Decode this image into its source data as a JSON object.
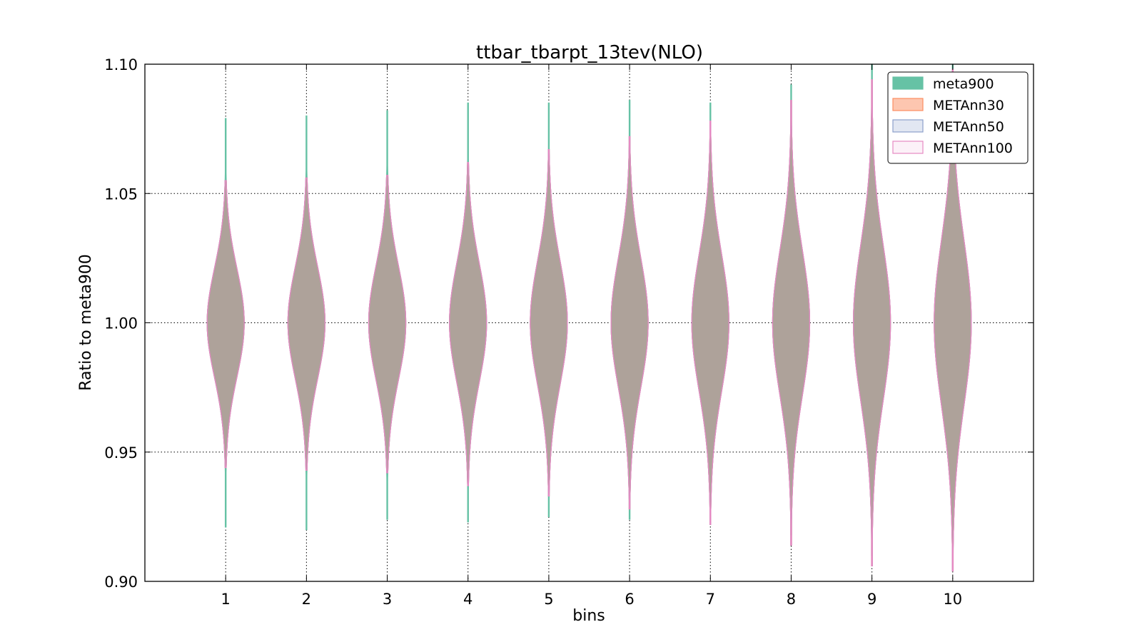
{
  "chart_data": {
    "type": "violin",
    "title": "ttbar_tbarpt_13tev(NLO)",
    "xlabel": "bins",
    "ylabel": "Ratio to meta900",
    "ylim": [
      0.9,
      1.1
    ],
    "xlim": [
      0,
      11
    ],
    "yticks": [
      "0.90",
      "0.95",
      "1.00",
      "1.05",
      "1.10"
    ],
    "categories": [
      "1",
      "2",
      "3",
      "4",
      "5",
      "6",
      "7",
      "8",
      "9",
      "10"
    ],
    "grid": true,
    "legend_position": "top-right",
    "series": [
      {
        "name": "meta900",
        "fill": "#66c2a5",
        "edge": "#66c2a5",
        "fill_opacity": 1.0,
        "min": [
          0.921,
          0.92,
          0.924,
          0.923,
          0.925,
          0.924,
          0.922,
          0.918,
          0.91,
          0.905
        ],
        "max": [
          1.079,
          1.08,
          1.082,
          1.085,
          1.085,
          1.086,
          1.085,
          1.092,
          1.1,
          1.1
        ],
        "sigma": [
          0.021,
          0.0215,
          0.022,
          0.023,
          0.024,
          0.025,
          0.0265,
          0.028,
          0.03,
          0.032
        ]
      },
      {
        "name": "METAnn30",
        "fill": "#fc8d62",
        "edge": "#fc8d62",
        "fill_opacity": 0.5,
        "min": [
          0.944,
          0.943,
          0.942,
          0.937,
          0.933,
          0.928,
          0.922,
          0.914,
          0.906,
          0.904
        ],
        "max": [
          1.055,
          1.056,
          1.057,
          1.062,
          1.067,
          1.072,
          1.078,
          1.086,
          1.094,
          1.098
        ],
        "sigma": [
          0.021,
          0.0215,
          0.022,
          0.023,
          0.024,
          0.025,
          0.0265,
          0.028,
          0.03,
          0.032
        ]
      },
      {
        "name": "METAnn50",
        "fill": "#8da0cb",
        "edge": "#8da0cb",
        "fill_opacity": 0.25,
        "min": [
          0.944,
          0.943,
          0.942,
          0.937,
          0.933,
          0.928,
          0.922,
          0.914,
          0.906,
          0.904
        ],
        "max": [
          1.055,
          1.056,
          1.057,
          1.062,
          1.067,
          1.072,
          1.078,
          1.086,
          1.094,
          1.098
        ],
        "sigma": [
          0.021,
          0.0215,
          0.022,
          0.023,
          0.024,
          0.025,
          0.0265,
          0.028,
          0.03,
          0.032
        ]
      },
      {
        "name": "METAnn100",
        "fill": "#e78ac3",
        "edge": "#e78ac3",
        "fill_opacity": 0.12,
        "min": [
          0.944,
          0.943,
          0.942,
          0.937,
          0.933,
          0.928,
          0.922,
          0.914,
          0.906,
          0.904
        ],
        "max": [
          1.055,
          1.056,
          1.057,
          1.062,
          1.067,
          1.072,
          1.078,
          1.086,
          1.094,
          1.098
        ],
        "sigma": [
          0.021,
          0.0215,
          0.022,
          0.023,
          0.024,
          0.025,
          0.0265,
          0.028,
          0.03,
          0.032
        ]
      }
    ]
  }
}
